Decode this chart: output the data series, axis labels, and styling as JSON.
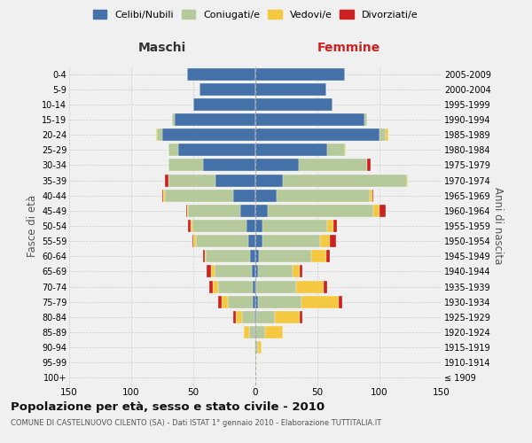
{
  "age_groups": [
    "100+",
    "95-99",
    "90-94",
    "85-89",
    "80-84",
    "75-79",
    "70-74",
    "65-69",
    "60-64",
    "55-59",
    "50-54",
    "45-49",
    "40-44",
    "35-39",
    "30-34",
    "25-29",
    "20-24",
    "15-19",
    "10-14",
    "5-9",
    "0-4"
  ],
  "birth_years": [
    "≤ 1909",
    "1910-1914",
    "1915-1919",
    "1920-1924",
    "1925-1929",
    "1930-1934",
    "1935-1939",
    "1940-1944",
    "1945-1949",
    "1950-1954",
    "1955-1959",
    "1960-1964",
    "1965-1969",
    "1970-1974",
    "1975-1979",
    "1980-1984",
    "1985-1989",
    "1990-1994",
    "1995-1999",
    "2000-2004",
    "2005-2009"
  ],
  "maschi": {
    "celibi": [
      0,
      0,
      0,
      1,
      1,
      2,
      2,
      3,
      4,
      6,
      7,
      12,
      18,
      32,
      42,
      62,
      75,
      65,
      50,
      45,
      55
    ],
    "coniugati": [
      0,
      0,
      1,
      4,
      10,
      20,
      28,
      30,
      36,
      42,
      44,
      42,
      55,
      38,
      28,
      8,
      4,
      2,
      0,
      0,
      0
    ],
    "vedovi": [
      0,
      0,
      0,
      4,
      5,
      5,
      4,
      3,
      1,
      2,
      1,
      1,
      1,
      0,
      0,
      0,
      1,
      0,
      0,
      0,
      0
    ],
    "divorziati": [
      0,
      0,
      0,
      0,
      2,
      3,
      3,
      3,
      1,
      1,
      2,
      1,
      1,
      3,
      0,
      0,
      0,
      0,
      0,
      0,
      0
    ]
  },
  "femmine": {
    "celibi": [
      0,
      0,
      0,
      0,
      1,
      2,
      1,
      2,
      3,
      6,
      6,
      10,
      17,
      22,
      35,
      58,
      100,
      88,
      62,
      57,
      72
    ],
    "coniugati": [
      0,
      0,
      2,
      8,
      15,
      35,
      32,
      28,
      42,
      46,
      52,
      85,
      75,
      100,
      55,
      14,
      5,
      2,
      0,
      0,
      0
    ],
    "vedovi": [
      0,
      1,
      3,
      14,
      20,
      30,
      22,
      6,
      12,
      8,
      5,
      5,
      2,
      1,
      0,
      1,
      2,
      0,
      0,
      0,
      0
    ],
    "divorziati": [
      0,
      0,
      0,
      0,
      2,
      3,
      3,
      2,
      3,
      5,
      3,
      5,
      1,
      0,
      3,
      0,
      0,
      0,
      0,
      0,
      0
    ]
  },
  "colors": {
    "celibi": "#4472a8",
    "coniugati": "#b5c99a",
    "vedovi": "#f5c842",
    "divorziati": "#cc2222"
  },
  "xlim": 150,
  "title": "Popolazione per età, sesso e stato civile - 2010",
  "subtitle": "COMUNE DI CASTELNUOVO CILENTO (SA) - Dati ISTAT 1° gennaio 2010 - Elaborazione TUTTITALIA.IT",
  "ylabel_left": "Fasce di età",
  "ylabel_right": "Anni di nascita",
  "xlabel_left": "Maschi",
  "xlabel_right": "Femmine",
  "bg_color": "#f0f0f0",
  "grid_color": "#cccccc"
}
